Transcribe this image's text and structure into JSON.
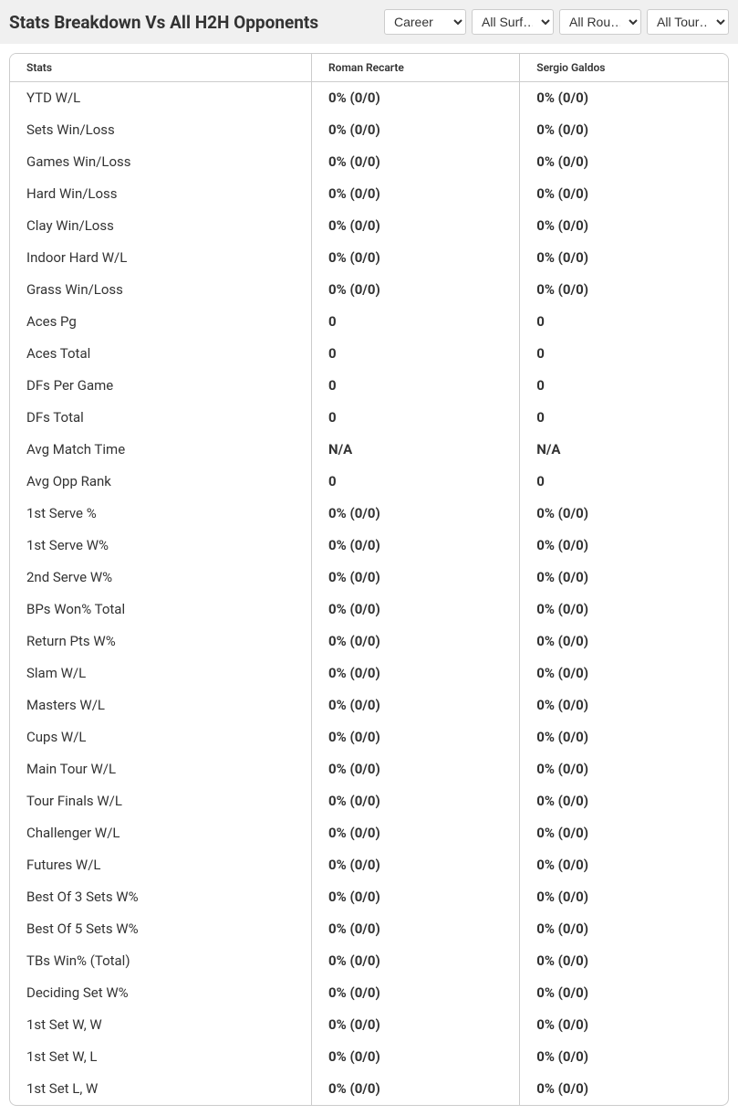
{
  "header": {
    "title": "Stats Breakdown Vs All H2H Opponents"
  },
  "filters": {
    "career": {
      "selected": "Career",
      "options": [
        "Career"
      ]
    },
    "surface": {
      "selected": "All Surf…",
      "options": [
        "All Surf…"
      ]
    },
    "round": {
      "selected": "All Rou…",
      "options": [
        "All Rou…"
      ]
    },
    "tournament": {
      "selected": "All Tour…",
      "options": [
        "All Tour…"
      ]
    }
  },
  "table": {
    "columns": [
      "Stats",
      "Roman Recarte",
      "Sergio Galdos"
    ],
    "rows": [
      {
        "stat": "YTD W/L",
        "p1": "0% (0/0)",
        "p2": "0% (0/0)"
      },
      {
        "stat": "Sets Win/Loss",
        "p1": "0% (0/0)",
        "p2": "0% (0/0)"
      },
      {
        "stat": "Games Win/Loss",
        "p1": "0% (0/0)",
        "p2": "0% (0/0)"
      },
      {
        "stat": "Hard Win/Loss",
        "p1": "0% (0/0)",
        "p2": "0% (0/0)"
      },
      {
        "stat": "Clay Win/Loss",
        "p1": "0% (0/0)",
        "p2": "0% (0/0)"
      },
      {
        "stat": "Indoor Hard W/L",
        "p1": "0% (0/0)",
        "p2": "0% (0/0)"
      },
      {
        "stat": "Grass Win/Loss",
        "p1": "0% (0/0)",
        "p2": "0% (0/0)"
      },
      {
        "stat": "Aces Pg",
        "p1": "0",
        "p2": "0"
      },
      {
        "stat": "Aces Total",
        "p1": "0",
        "p2": "0"
      },
      {
        "stat": "DFs Per Game",
        "p1": "0",
        "p2": "0"
      },
      {
        "stat": "DFs Total",
        "p1": "0",
        "p2": "0"
      },
      {
        "stat": "Avg Match Time",
        "p1": "N/A",
        "p2": "N/A"
      },
      {
        "stat": "Avg Opp Rank",
        "p1": "0",
        "p2": "0"
      },
      {
        "stat": "1st Serve %",
        "p1": "0% (0/0)",
        "p2": "0% (0/0)"
      },
      {
        "stat": "1st Serve W%",
        "p1": "0% (0/0)",
        "p2": "0% (0/0)"
      },
      {
        "stat": "2nd Serve W%",
        "p1": "0% (0/0)",
        "p2": "0% (0/0)"
      },
      {
        "stat": "BPs Won% Total",
        "p1": "0% (0/0)",
        "p2": "0% (0/0)"
      },
      {
        "stat": "Return Pts W%",
        "p1": "0% (0/0)",
        "p2": "0% (0/0)"
      },
      {
        "stat": "Slam W/L",
        "p1": "0% (0/0)",
        "p2": "0% (0/0)"
      },
      {
        "stat": "Masters W/L",
        "p1": "0% (0/0)",
        "p2": "0% (0/0)"
      },
      {
        "stat": "Cups W/L",
        "p1": "0% (0/0)",
        "p2": "0% (0/0)"
      },
      {
        "stat": "Main Tour W/L",
        "p1": "0% (0/0)",
        "p2": "0% (0/0)"
      },
      {
        "stat": "Tour Finals W/L",
        "p1": "0% (0/0)",
        "p2": "0% (0/0)"
      },
      {
        "stat": "Challenger W/L",
        "p1": "0% (0/0)",
        "p2": "0% (0/0)"
      },
      {
        "stat": "Futures W/L",
        "p1": "0% (0/0)",
        "p2": "0% (0/0)"
      },
      {
        "stat": "Best Of 3 Sets W%",
        "p1": "0% (0/0)",
        "p2": "0% (0/0)"
      },
      {
        "stat": "Best Of 5 Sets W%",
        "p1": "0% (0/0)",
        "p2": "0% (0/0)"
      },
      {
        "stat": "TBs Win% (Total)",
        "p1": "0% (0/0)",
        "p2": "0% (0/0)"
      },
      {
        "stat": "Deciding Set W%",
        "p1": "0% (0/0)",
        "p2": "0% (0/0)"
      },
      {
        "stat": "1st Set W, W",
        "p1": "0% (0/0)",
        "p2": "0% (0/0)"
      },
      {
        "stat": "1st Set W, L",
        "p1": "0% (0/0)",
        "p2": "0% (0/0)"
      },
      {
        "stat": "1st Set L, W",
        "p1": "0% (0/0)",
        "p2": "0% (0/0)"
      }
    ]
  },
  "styling": {
    "header_bg": "#f0f0f0",
    "border_color": "#cccccc",
    "body_bg": "#ffffff",
    "text_color": "#333333"
  }
}
